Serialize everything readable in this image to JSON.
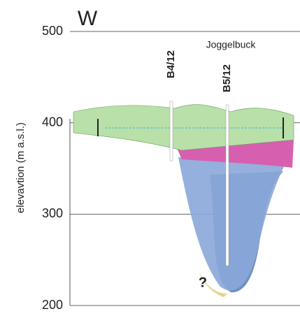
{
  "figure": {
    "side": "W",
    "site": "Joggelbuck",
    "boreholes": [
      "B4/12",
      "B5/12"
    ],
    "unknown": "?",
    "axis": {
      "label": "elevavtion (m a.s.l.)",
      "ylim": [
        200,
        500
      ],
      "yticks": [
        200,
        300,
        400,
        500
      ]
    }
  }
}
